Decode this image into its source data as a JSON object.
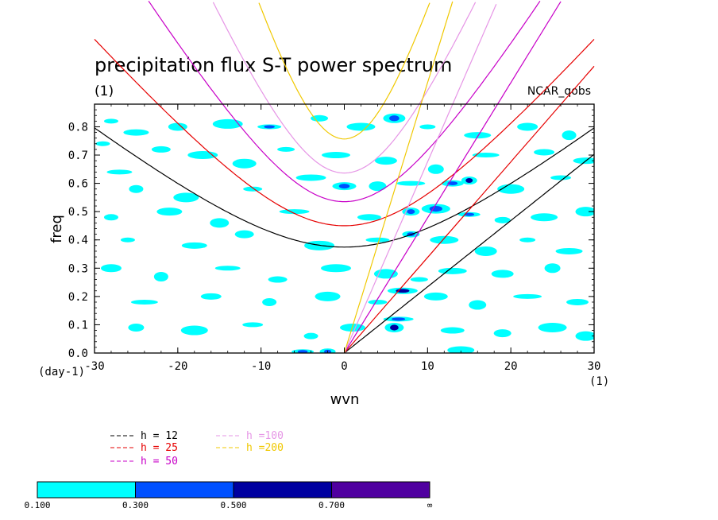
{
  "chart_data": {
    "type": "heatmap",
    "title": "precipitation flux S-T power spectrum",
    "subtitle_left": "(1)",
    "subtitle_right": "NCAR_qobs",
    "xlabel": "wvn",
    "ylabel": "freq",
    "x_unit": "(1)",
    "y_unit": "(day-1)",
    "xlim": [
      -30,
      30
    ],
    "ylim": [
      0,
      0.88
    ],
    "xticks": [
      "-30",
      "-20",
      "-10",
      "0",
      "10",
      "20",
      "30"
    ],
    "yticks": [
      "0.0",
      "0.1",
      "0.2",
      "0.3",
      "0.4",
      "0.5",
      "0.6",
      "0.7",
      "0.8"
    ],
    "curve_sets": [
      {
        "kind": "inertio-gravity n=1",
        "gap": 0.0
      },
      {
        "kind": "kelvin",
        "gap": 0.0
      }
    ],
    "dispersion_curves": [
      {
        "label": "h = 12",
        "h": 12,
        "color": "#000000",
        "types": [
          "kelvin",
          "ig1"
        ]
      },
      {
        "label": "h = 25",
        "h": 25,
        "color": "#e60000",
        "types": [
          "kelvin",
          "ig1"
        ]
      },
      {
        "label": "h = 50",
        "h": 50,
        "color": "#c800c8",
        "types": [
          "kelvin",
          "ig1"
        ]
      },
      {
        "label": "h =100",
        "h": 100,
        "color": "#e696e6",
        "types": [
          "kelvin",
          "ig1"
        ]
      },
      {
        "label": "h =200",
        "h": 200,
        "color": "#f0c800",
        "types": [
          "kelvin",
          "ig1"
        ]
      }
    ],
    "contour_levels": [
      {
        "from": "0.100",
        "to": "0.300",
        "color": "#00ffff"
      },
      {
        "from": "0.300",
        "to": "0.500",
        "color": "#0050ff"
      },
      {
        "from": "0.500",
        "to": "0.700",
        "color": "#0000a0"
      },
      {
        "from": "0.700",
        "to": "∞",
        "color": "#5000a0"
      }
    ],
    "colorbar_labels": [
      "0.100",
      "0.300",
      "0.500",
      "0.700",
      "∞"
    ],
    "legend_items": [
      {
        "label": "h = 12",
        "color": "#000000"
      },
      {
        "label": "h = 25",
        "color": "#e60000"
      },
      {
        "label": "h = 50",
        "color": "#c800c8"
      },
      {
        "label": "h =100",
        "color": "#e696e6"
      },
      {
        "label": "h =200",
        "color": "#f0c800"
      }
    ],
    "blobs": [
      {
        "x": -28,
        "y": 0.82,
        "v": 0.2
      },
      {
        "x": -25,
        "y": 0.78,
        "v": 0.15
      },
      {
        "x": -20,
        "y": 0.8,
        "v": 0.2
      },
      {
        "x": -14,
        "y": 0.81,
        "v": 0.2
      },
      {
        "x": -9,
        "y": 0.8,
        "v": 0.35
      },
      {
        "x": -3,
        "y": 0.83,
        "v": 0.2
      },
      {
        "x": 2,
        "y": 0.8,
        "v": 0.2
      },
      {
        "x": 6,
        "y": 0.83,
        "v": 0.35
      },
      {
        "x": 10,
        "y": 0.8,
        "v": 0.2
      },
      {
        "x": 16,
        "y": 0.77,
        "v": 0.2
      },
      {
        "x": 22,
        "y": 0.8,
        "v": 0.2
      },
      {
        "x": 27,
        "y": 0.77,
        "v": 0.2
      },
      {
        "x": -27,
        "y": 0.64,
        "v": 0.2
      },
      {
        "x": -22,
        "y": 0.72,
        "v": 0.2
      },
      {
        "x": -17,
        "y": 0.7,
        "v": 0.2
      },
      {
        "x": -12,
        "y": 0.67,
        "v": 0.2
      },
      {
        "x": -7,
        "y": 0.72,
        "v": 0.2
      },
      {
        "x": -1,
        "y": 0.7,
        "v": 0.2
      },
      {
        "x": 5,
        "y": 0.68,
        "v": 0.2
      },
      {
        "x": 11,
        "y": 0.65,
        "v": 0.2
      },
      {
        "x": 17,
        "y": 0.7,
        "v": 0.2
      },
      {
        "x": 24,
        "y": 0.71,
        "v": 0.2
      },
      {
        "x": -25,
        "y": 0.58,
        "v": 0.2
      },
      {
        "x": -19,
        "y": 0.55,
        "v": 0.2
      },
      {
        "x": -11,
        "y": 0.58,
        "v": 0.2
      },
      {
        "x": -4,
        "y": 0.62,
        "v": 0.2
      },
      {
        "x": 0,
        "y": 0.59,
        "v": 0.35
      },
      {
        "x": 4,
        "y": 0.59,
        "v": 0.2
      },
      {
        "x": 8,
        "y": 0.6,
        "v": 0.2
      },
      {
        "x": 13,
        "y": 0.6,
        "v": 0.45
      },
      {
        "x": 15,
        "y": 0.61,
        "v": 0.55
      },
      {
        "x": 20,
        "y": 0.58,
        "v": 0.2
      },
      {
        "x": 26,
        "y": 0.62,
        "v": 0.2
      },
      {
        "x": -28,
        "y": 0.48,
        "v": 0.2
      },
      {
        "x": -21,
        "y": 0.5,
        "v": 0.2
      },
      {
        "x": -15,
        "y": 0.46,
        "v": 0.2
      },
      {
        "x": -6,
        "y": 0.5,
        "v": 0.2
      },
      {
        "x": 3,
        "y": 0.48,
        "v": 0.2
      },
      {
        "x": 8,
        "y": 0.5,
        "v": 0.45
      },
      {
        "x": 11,
        "y": 0.51,
        "v": 0.35
      },
      {
        "x": 15,
        "y": 0.49,
        "v": 0.35
      },
      {
        "x": 19,
        "y": 0.47,
        "v": 0.2
      },
      {
        "x": 24,
        "y": 0.48,
        "v": 0.2
      },
      {
        "x": 29,
        "y": 0.5,
        "v": 0.2
      },
      {
        "x": -26,
        "y": 0.4,
        "v": 0.2
      },
      {
        "x": -18,
        "y": 0.38,
        "v": 0.2
      },
      {
        "x": -12,
        "y": 0.42,
        "v": 0.2
      },
      {
        "x": -3,
        "y": 0.38,
        "v": 0.2
      },
      {
        "x": 4,
        "y": 0.4,
        "v": 0.2
      },
      {
        "x": 8,
        "y": 0.42,
        "v": 0.35
      },
      {
        "x": 12,
        "y": 0.4,
        "v": 0.2
      },
      {
        "x": 17,
        "y": 0.36,
        "v": 0.2
      },
      {
        "x": 22,
        "y": 0.4,
        "v": 0.2
      },
      {
        "x": 27,
        "y": 0.36,
        "v": 0.2
      },
      {
        "x": -28,
        "y": 0.3,
        "v": 0.2
      },
      {
        "x": -22,
        "y": 0.27,
        "v": 0.2
      },
      {
        "x": -14,
        "y": 0.3,
        "v": 0.2
      },
      {
        "x": -8,
        "y": 0.26,
        "v": 0.2
      },
      {
        "x": -1,
        "y": 0.3,
        "v": 0.2
      },
      {
        "x": 5,
        "y": 0.28,
        "v": 0.2
      },
      {
        "x": 9,
        "y": 0.26,
        "v": 0.2
      },
      {
        "x": 13,
        "y": 0.29,
        "v": 0.2
      },
      {
        "x": 19,
        "y": 0.28,
        "v": 0.2
      },
      {
        "x": 25,
        "y": 0.3,
        "v": 0.2
      },
      {
        "x": -24,
        "y": 0.18,
        "v": 0.2
      },
      {
        "x": -16,
        "y": 0.2,
        "v": 0.2
      },
      {
        "x": -9,
        "y": 0.18,
        "v": 0.2
      },
      {
        "x": -2,
        "y": 0.2,
        "v": 0.2
      },
      {
        "x": 4,
        "y": 0.18,
        "v": 0.2
      },
      {
        "x": 7,
        "y": 0.22,
        "v": 0.55
      },
      {
        "x": 11,
        "y": 0.2,
        "v": 0.2
      },
      {
        "x": 16,
        "y": 0.17,
        "v": 0.2
      },
      {
        "x": 22,
        "y": 0.2,
        "v": 0.2
      },
      {
        "x": 28,
        "y": 0.18,
        "v": 0.2
      },
      {
        "x": -25,
        "y": 0.09,
        "v": 0.2
      },
      {
        "x": -18,
        "y": 0.08,
        "v": 0.2
      },
      {
        "x": -11,
        "y": 0.1,
        "v": 0.2
      },
      {
        "x": -4,
        "y": 0.06,
        "v": 0.2
      },
      {
        "x": 1,
        "y": 0.09,
        "v": 0.2
      },
      {
        "x": 6,
        "y": 0.09,
        "v": 0.55
      },
      {
        "x": 6.5,
        "y": 0.12,
        "v": 0.35
      },
      {
        "x": 13,
        "y": 0.08,
        "v": 0.2
      },
      {
        "x": 19,
        "y": 0.07,
        "v": 0.2
      },
      {
        "x": 25,
        "y": 0.09,
        "v": 0.2
      },
      {
        "x": -5,
        "y": 0.005,
        "v": 0.45
      },
      {
        "x": -2,
        "y": 0.005,
        "v": 0.45
      },
      {
        "x": 14,
        "y": 0.01,
        "v": 0.2
      },
      {
        "x": 29,
        "y": 0.06,
        "v": 0.2
      },
      {
        "x": -29,
        "y": 0.74,
        "v": 0.2
      },
      {
        "x": 29,
        "y": 0.68,
        "v": 0.2
      }
    ]
  }
}
